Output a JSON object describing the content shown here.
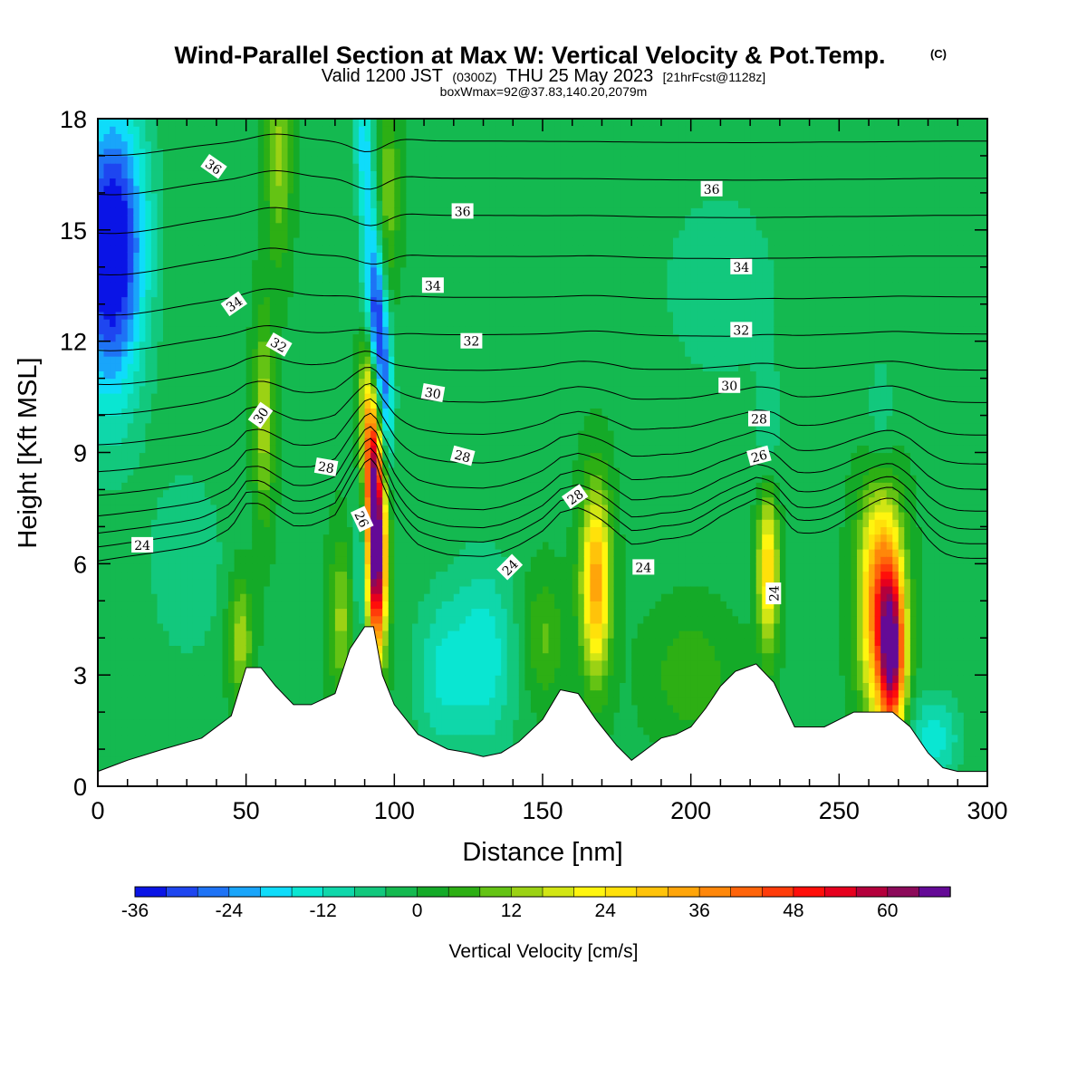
{
  "header": {
    "title": "Wind-Parallel Section at Max W: Vertical Velocity & Pot.Temp.",
    "copyright": "(C)",
    "valid_prefix": "Valid 1200 JST",
    "valid_utc": "(0300Z)",
    "valid_date": "THU 25 May 2023",
    "forecast": "[21hrFcst@1128z]",
    "box_info": "boxWmax=92@37.83,140.20,2079m"
  },
  "colors": {
    "terrain": "#ffffff",
    "contour": "#000000",
    "background": "#ffffff"
  },
  "chart_data": {
    "type": "heatmap",
    "xlabel": "Distance [nm]",
    "ylabel": "Height [Kft MSL]",
    "xlim": [
      0,
      300
    ],
    "ylim": [
      0,
      18
    ],
    "x_ticks": [
      "0",
      "50",
      "100",
      "150",
      "200",
      "250",
      "300"
    ],
    "y_ticks": [
      "0",
      "3",
      "6",
      "9",
      "12",
      "15",
      "18"
    ],
    "colorbar": {
      "label": "Vertical Velocity [cm/s]",
      "min": -36,
      "max": 68,
      "step": 4,
      "tick_labels": [
        "-36",
        "-24",
        "-12",
        "0",
        "12",
        "24",
        "36",
        "48",
        "60"
      ],
      "colors": [
        "#0a14e6",
        "#1e46f0",
        "#1e73f5",
        "#19a5fa",
        "#0fdcfa",
        "#0ae6d2",
        "#0fd7aa",
        "#12c87d",
        "#14b950",
        "#14aa28",
        "#2daf14",
        "#64c314",
        "#9bd214",
        "#d2e614",
        "#fff50f",
        "#ffe10a",
        "#ffc30a",
        "#ffa50a",
        "#ff870a",
        "#ff640a",
        "#ff3c0a",
        "#ff0f0a",
        "#e6001e",
        "#b4003c",
        "#8c0a5a",
        "#640a96"
      ]
    },
    "terrain_profile": {
      "distance_nm": [
        0,
        10,
        22,
        35,
        45,
        50,
        55,
        60,
        66,
        72,
        80,
        85,
        90,
        93,
        96,
        100,
        108,
        118,
        125,
        130,
        136,
        142,
        150,
        156,
        162,
        168,
        175,
        180,
        185,
        190,
        195,
        200,
        205,
        210,
        215,
        222,
        228,
        235,
        245,
        255,
        262,
        268,
        274,
        280,
        285,
        290,
        300
      ],
      "height_kft": [
        0.4,
        0.7,
        1.0,
        1.3,
        1.9,
        3.2,
        3.2,
        2.7,
        2.2,
        2.2,
        2.5,
        3.7,
        4.3,
        4.3,
        3.0,
        2.2,
        1.4,
        1.0,
        0.9,
        0.8,
        0.9,
        1.2,
        1.8,
        2.6,
        2.5,
        1.8,
        1.1,
        0.7,
        1.0,
        1.3,
        1.4,
        1.6,
        2.1,
        2.7,
        3.1,
        3.3,
        2.8,
        1.6,
        1.6,
        2.0,
        2.0,
        2.0,
        1.6,
        0.9,
        0.5,
        0.4,
        0.4
      ]
    },
    "w_features": [
      {
        "x_nm": 5,
        "z_kft": 15.0,
        "w": -32,
        "sx": 8,
        "sz": 2.5
      },
      {
        "x_nm": 3,
        "z_kft": 12.5,
        "w": -12,
        "sx": 8,
        "sz": 2.5
      },
      {
        "x_nm": 94,
        "z_kft": 6.0,
        "w": 64,
        "sx": 2.4,
        "sz": 1.8
      },
      {
        "x_nm": 93,
        "z_kft": 8.5,
        "w": 40,
        "sx": 2.2,
        "sz": 1.6
      },
      {
        "x_nm": 91,
        "z_kft": 10.5,
        "w": 20,
        "sx": 2.2,
        "sz": 1.5
      },
      {
        "x_nm": 89,
        "z_kft": 6.0,
        "w": -16,
        "sx": 1.8,
        "sz": 1.5
      },
      {
        "x_nm": 97,
        "z_kft": 10.5,
        "w": -24,
        "sx": 2.0,
        "sz": 1.6
      },
      {
        "x_nm": 94,
        "z_kft": 12.5,
        "w": -30,
        "sx": 2.0,
        "sz": 1.5
      },
      {
        "x_nm": 91,
        "z_kft": 15.0,
        "w": -16,
        "sx": 2.0,
        "sz": 2.0
      },
      {
        "x_nm": 89,
        "z_kft": 17.5,
        "w": -12,
        "sx": 2.0,
        "sz": 1.0
      },
      {
        "x_nm": 98,
        "z_kft": 16.0,
        "w": 12,
        "sx": 2.5,
        "sz": 2.0
      },
      {
        "x_nm": 56,
        "z_kft": 10.0,
        "w": 16,
        "sx": 2.5,
        "sz": 2.0
      },
      {
        "x_nm": 61,
        "z_kft": 17.0,
        "w": 14,
        "sx": 3.0,
        "sz": 2.0
      },
      {
        "x_nm": 48,
        "z_kft": 4.0,
        "w": 16,
        "sx": 3.0,
        "sz": 1.2
      },
      {
        "x_nm": 82,
        "z_kft": 4.5,
        "w": 14,
        "sx": 3.0,
        "sz": 1.5
      },
      {
        "x_nm": 130,
        "z_kft": 3.5,
        "w": -14,
        "sx": 8,
        "sz": 1.8
      },
      {
        "x_nm": 115,
        "z_kft": 3.0,
        "w": -10,
        "sx": 6,
        "sz": 1.5
      },
      {
        "x_nm": 168,
        "z_kft": 5.5,
        "w": 36,
        "sx": 3.5,
        "sz": 1.8
      },
      {
        "x_nm": 226,
        "z_kft": 6.0,
        "w": 30,
        "sx": 2.5,
        "sz": 1.6
      },
      {
        "x_nm": 226,
        "z_kft": 9.0,
        "w": -8,
        "sx": 3.0,
        "sz": 1.5
      },
      {
        "x_nm": 264,
        "z_kft": 5.0,
        "w": 44,
        "sx": 5,
        "sz": 2.2
      },
      {
        "x_nm": 268,
        "z_kft": 3.5,
        "w": 50,
        "sx": 3,
        "sz": 1.5
      },
      {
        "x_nm": 264,
        "z_kft": 9.5,
        "w": -8,
        "sx": 4,
        "sz": 1.5
      },
      {
        "x_nm": 282,
        "z_kft": 1.3,
        "w": -14,
        "sx": 6,
        "sz": 0.8
      },
      {
        "x_nm": 210,
        "z_kft": 13.5,
        "w": -6,
        "sx": 15,
        "sz": 2.0
      },
      {
        "x_nm": 150,
        "z_kft": 4.0,
        "w": 10,
        "sx": 5,
        "sz": 1.2
      },
      {
        "x_nm": 30,
        "z_kft": 6.0,
        "w": -6,
        "sx": 10,
        "sz": 2.0
      },
      {
        "x_nm": 200,
        "z_kft": 3.0,
        "w": 8,
        "sx": 10,
        "sz": 1.2
      }
    ],
    "theta_contours": [
      {
        "value": "24",
        "label": true,
        "base_kft": 6.0
      },
      {
        "value": "25",
        "label": false,
        "base_kft": 6.4
      },
      {
        "value": "26",
        "label": true,
        "base_kft": 6.8
      },
      {
        "value": "27",
        "label": false,
        "base_kft": 7.3
      },
      {
        "value": "28",
        "label": true,
        "base_kft": 7.9
      },
      {
        "value": "29",
        "label": false,
        "base_kft": 8.6
      },
      {
        "value": "30",
        "label": true,
        "base_kft": 9.4
      },
      {
        "value": "31",
        "label": false,
        "base_kft": 10.3
      },
      {
        "value": "32",
        "label": true,
        "base_kft": 11.2
      },
      {
        "value": "33",
        "label": false,
        "base_kft": 12.2
      },
      {
        "value": "34",
        "label": true,
        "base_kft": 13.2
      },
      {
        "value": "35",
        "label": false,
        "base_kft": 14.3
      },
      {
        "value": "36",
        "label": true,
        "base_kft": 15.4
      },
      {
        "value": "37",
        "label": false,
        "base_kft": 16.4
      },
      {
        "value": "38",
        "label": false,
        "base_kft": 17.4
      }
    ],
    "contour_labels": [
      {
        "text": "36",
        "x_nm": 39,
        "z_kft": 16.7,
        "rot": 35
      },
      {
        "text": "36",
        "x_nm": 123,
        "z_kft": 15.5,
        "rot": 0
      },
      {
        "text": "36",
        "x_nm": 207,
        "z_kft": 16.1,
        "rot": 0
      },
      {
        "text": "34",
        "x_nm": 46,
        "z_kft": 13.0,
        "rot": -35
      },
      {
        "text": "34",
        "x_nm": 113,
        "z_kft": 13.5,
        "rot": 0
      },
      {
        "text": "34",
        "x_nm": 217,
        "z_kft": 14.0,
        "rot": 0
      },
      {
        "text": "32",
        "x_nm": 61,
        "z_kft": 11.9,
        "rot": 30
      },
      {
        "text": "32",
        "x_nm": 126,
        "z_kft": 12.0,
        "rot": 0
      },
      {
        "text": "32",
        "x_nm": 217,
        "z_kft": 12.3,
        "rot": 0
      },
      {
        "text": "30",
        "x_nm": 55,
        "z_kft": 10.0,
        "rot": -55
      },
      {
        "text": "30",
        "x_nm": 113,
        "z_kft": 10.6,
        "rot": 10
      },
      {
        "text": "30",
        "x_nm": 213,
        "z_kft": 10.8,
        "rot": 0
      },
      {
        "text": "28",
        "x_nm": 77,
        "z_kft": 8.6,
        "rot": 10
      },
      {
        "text": "28",
        "x_nm": 123,
        "z_kft": 8.9,
        "rot": 15
      },
      {
        "text": "28",
        "x_nm": 223,
        "z_kft": 9.9,
        "rot": 0
      },
      {
        "text": "28",
        "x_nm": 161,
        "z_kft": 7.8,
        "rot": -35
      },
      {
        "text": "26",
        "x_nm": 89,
        "z_kft": 7.2,
        "rot": 65
      },
      {
        "text": "26",
        "x_nm": 223,
        "z_kft": 8.9,
        "rot": -15
      },
      {
        "text": "24",
        "x_nm": 15,
        "z_kft": 6.5,
        "rot": 0
      },
      {
        "text": "24",
        "x_nm": 139,
        "z_kft": 5.9,
        "rot": -45
      },
      {
        "text": "24",
        "x_nm": 184,
        "z_kft": 5.9,
        "rot": 0
      },
      {
        "text": "24",
        "x_nm": 228,
        "z_kft": 5.2,
        "rot": -90
      }
    ]
  }
}
